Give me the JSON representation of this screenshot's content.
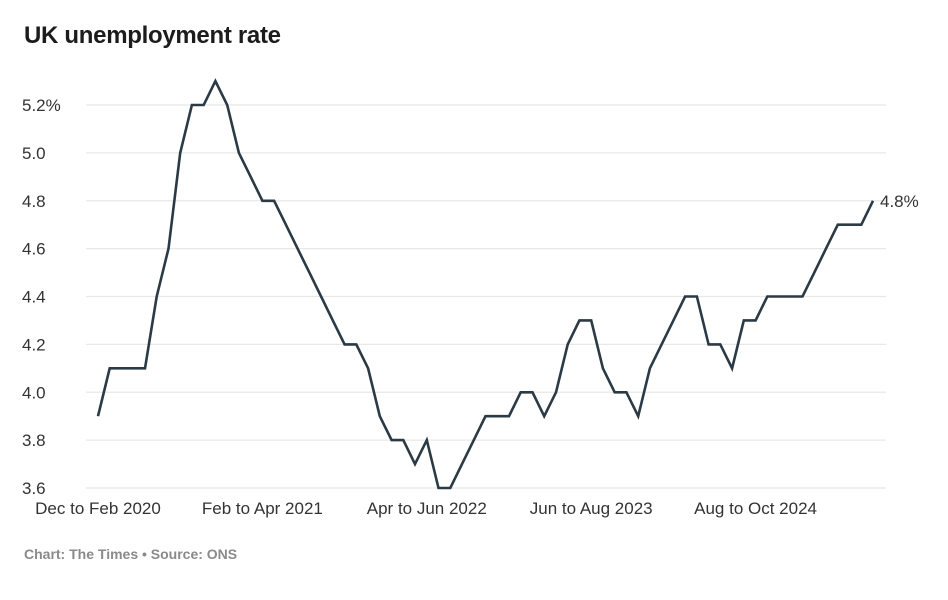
{
  "chart_data": {
    "type": "line",
    "title": "UK unemployment rate",
    "xlabel": "",
    "ylabel": "",
    "ylim": [
      3.6,
      5.3
    ],
    "grid": true,
    "yticks": [
      3.6,
      3.8,
      4.0,
      4.2,
      4.4,
      4.6,
      4.8,
      5.0,
      5.2
    ],
    "ytick_labels": [
      "3.6",
      "3.8",
      "4.0",
      "4.2",
      "4.4",
      "4.6",
      "4.8",
      "5.0",
      "5.2%"
    ],
    "xticks": [
      {
        "index": 0,
        "label": "Dec to Feb 2020"
      },
      {
        "index": 14,
        "label": "Feb to Apr 2021"
      },
      {
        "index": 28,
        "label": "Apr to Jun 2022"
      },
      {
        "index": 42,
        "label": "Jun to Aug 2023"
      },
      {
        "index": 56,
        "label": "Aug to Oct 2024"
      }
    ],
    "series": [
      {
        "name": "Unemployment rate (%)",
        "color": "#2b3a44",
        "values": [
          3.9,
          4.1,
          4.1,
          4.1,
          4.1,
          4.4,
          4.6,
          5.0,
          5.2,
          5.2,
          5.3,
          5.2,
          5.0,
          4.9,
          4.8,
          4.8,
          4.7,
          4.6,
          4.5,
          4.4,
          4.3,
          4.2,
          4.2,
          4.1,
          3.9,
          3.8,
          3.8,
          3.7,
          3.8,
          3.6,
          3.6,
          3.7,
          3.8,
          3.9,
          3.9,
          3.9,
          4.0,
          4.0,
          3.9,
          4.0,
          4.2,
          4.3,
          4.3,
          4.1,
          4.0,
          4.0,
          3.9,
          4.1,
          4.2,
          4.3,
          4.4,
          4.4,
          4.2,
          4.2,
          4.1,
          4.3,
          4.3,
          4.4,
          4.4,
          4.4,
          4.4,
          4.5,
          4.6,
          4.7,
          4.7,
          4.7,
          4.8
        ]
      }
    ],
    "end_label": "4.8%"
  },
  "footer": "Chart: The Times • Source: ONS"
}
